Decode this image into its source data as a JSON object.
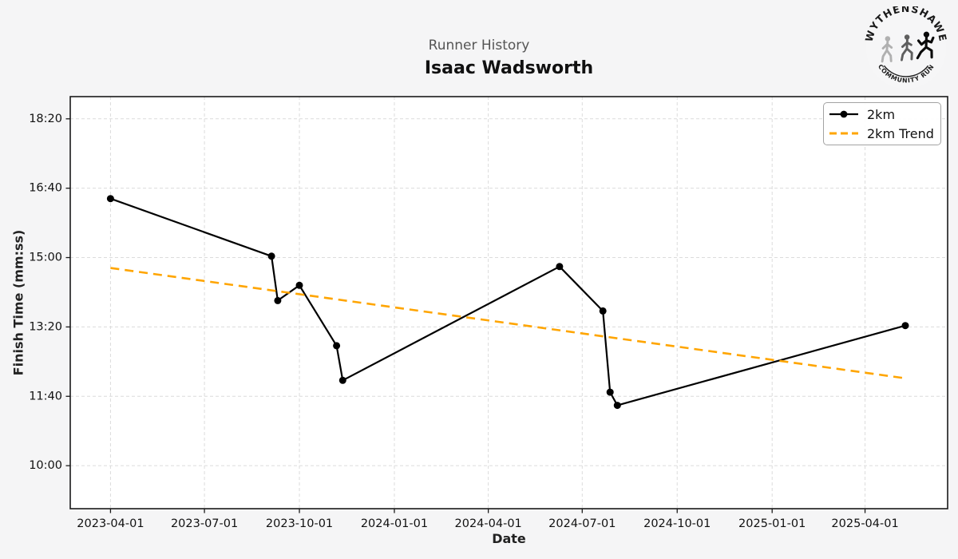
{
  "header": {
    "subtitle": "Runner History",
    "title": "Isaac Wadsworth"
  },
  "logo": {
    "top_text": "WYTHENSHAWE",
    "bottom_text": "COMMUNITY RUN"
  },
  "axes": {
    "xlabel": "Date",
    "ylabel": "Finish Time (mm:ss)"
  },
  "colors": {
    "figure_background": "#f5f5f6",
    "plot_background": "#ffffff",
    "grid": "#dcdcdc",
    "spine": "#1a1a1a",
    "series": "#000000",
    "trend": "#FFA500",
    "subtitle_text": "#555555",
    "title_text": "#111111"
  },
  "chart_data": {
    "type": "line",
    "title": "Isaac Wadsworth",
    "subtitle": "Runner History",
    "xlabel": "Date",
    "ylabel": "Finish Time (mm:ss)",
    "grid": true,
    "legend_position": "upper right",
    "x_ticks": [
      "2023-04-01",
      "2023-07-01",
      "2023-10-01",
      "2024-01-01",
      "2024-04-01",
      "2024-07-01",
      "2024-10-01",
      "2025-01-01",
      "2025-04-01"
    ],
    "y_ticks": [
      {
        "label": "18:20",
        "seconds": 1100
      },
      {
        "label": "16:40",
        "seconds": 1000
      },
      {
        "label": "15:00",
        "seconds": 900
      },
      {
        "label": "13:20",
        "seconds": 800
      },
      {
        "label": "11:40",
        "seconds": 700
      },
      {
        "label": "10:00",
        "seconds": 600
      }
    ],
    "x_range": [
      "2023-02-21",
      "2025-06-20"
    ],
    "y_range_seconds": [
      538,
      1132
    ],
    "series": [
      {
        "name": "2km",
        "color": "#000000",
        "points": [
          {
            "date": "2023-04-01",
            "time": "16:25",
            "seconds": 985
          },
          {
            "date": "2023-09-04",
            "time": "15:02",
            "seconds": 902
          },
          {
            "date": "2023-09-10",
            "time": "13:58",
            "seconds": 838
          },
          {
            "date": "2023-10-01",
            "time": "14:20",
            "seconds": 860
          },
          {
            "date": "2023-11-06",
            "time": "12:53",
            "seconds": 773
          },
          {
            "date": "2023-11-12",
            "time": "12:03",
            "seconds": 723
          },
          {
            "date": "2024-06-09",
            "time": "14:47",
            "seconds": 887
          },
          {
            "date": "2024-07-21",
            "time": "13:43",
            "seconds": 823
          },
          {
            "date": "2024-07-28",
            "time": "11:46",
            "seconds": 706
          },
          {
            "date": "2024-08-04",
            "time": "11:27",
            "seconds": 687
          },
          {
            "date": "2025-05-10",
            "time": "13:22",
            "seconds": 802
          }
        ]
      }
    ],
    "trend": {
      "name": "2km Trend",
      "color": "#FFA500",
      "style": "dashed",
      "points": [
        {
          "date": "2023-04-01",
          "time": "14:45",
          "seconds": 885
        },
        {
          "date": "2025-05-10",
          "time": "12:06",
          "seconds": 726
        }
      ]
    }
  }
}
